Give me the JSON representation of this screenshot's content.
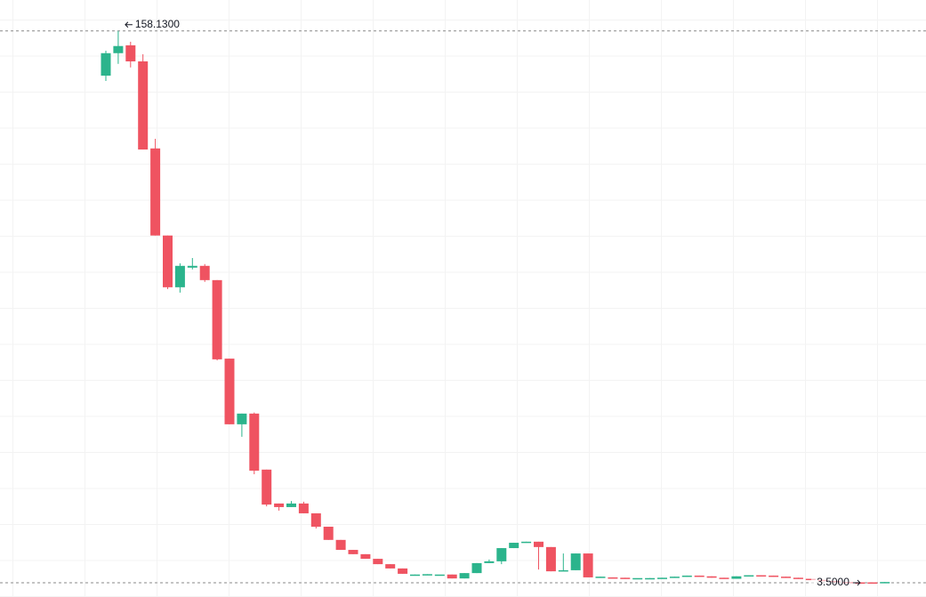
{
  "chart_data": {
    "type": "candlestick",
    "up_color": "#2bb48c",
    "down_color": "#ef5361",
    "ylim": [
      -0.5,
      166.8
    ],
    "categories": [
      null,
      null,
      null,
      null,
      null,
      null,
      null,
      null,
      null,
      null,
      null,
      null,
      null,
      null,
      null,
      null,
      null,
      null,
      null,
      null,
      null,
      null,
      null,
      null,
      null,
      null,
      null,
      null,
      null,
      null,
      null,
      null,
      null,
      null,
      null,
      null,
      null,
      null,
      null,
      null,
      null,
      null,
      null,
      null,
      null,
      null,
      null,
      null,
      null,
      null,
      null,
      null,
      null,
      null,
      null,
      null,
      null,
      null,
      null,
      null,
      null,
      null,
      null,
      null
    ],
    "open": [
      145.6,
      151.9,
      154.1,
      149.6,
      125.2,
      100.8,
      86.3,
      91.8,
      92.3,
      88.3,
      66.3,
      47.9,
      50.9,
      35.2,
      25.7,
      24.7,
      25.7,
      22.95,
      19.2,
      15.5,
      12.7,
      11.5,
      10.2,
      8.7,
      7.5,
      5.7,
      5.8,
      5.8,
      5.8,
      4.7,
      6.2,
      9.0,
      9.5,
      13.2,
      14.7,
      15.0,
      13.5,
      6.7,
      7.0,
      11.7,
      5.0,
      5.0,
      4.9,
      4.8,
      4.7,
      4.8,
      4.9,
      5.2,
      5.5,
      5.3,
      4.9,
      4.6,
      5.3,
      5.6,
      5.5,
      5.2,
      4.9,
      4.6,
      4.3,
      4.0,
      3.7,
      3.6,
      3.6,
      3.55
    ],
    "high": [
      152.6,
      158.13,
      155.1,
      151.6,
      127.9,
      100.8,
      93.0,
      94.5,
      92.8,
      88.3,
      66.3,
      50.9,
      51.2,
      35.2,
      25.7,
      26.4,
      26.2,
      22.95,
      19.2,
      15.5,
      12.7,
      11.5,
      10.2,
      8.7,
      7.5,
      5.8,
      5.9,
      5.8,
      5.8,
      6.2,
      9.0,
      10.0,
      13.2,
      14.7,
      15.0,
      15.0,
      13.5,
      11.7,
      11.7,
      11.7,
      5.2,
      5.0,
      4.9,
      4.8,
      4.8,
      4.9,
      5.2,
      5.5,
      5.5,
      5.3,
      4.9,
      5.3,
      5.6,
      5.6,
      5.5,
      5.2,
      4.9,
      4.6,
      4.3,
      4.0,
      3.7,
      3.6,
      3.6,
      3.7
    ],
    "low": [
      144.1,
      148.9,
      147.9,
      124.9,
      100.8,
      85.8,
      84.8,
      91.3,
      87.8,
      65.8,
      47.9,
      44.4,
      33.9,
      24.9,
      23.7,
      24.7,
      22.95,
      18.7,
      15.5,
      12.7,
      11.5,
      10.2,
      8.7,
      7.5,
      6.0,
      5.7,
      5.8,
      5.8,
      4.7,
      4.7,
      6.2,
      9.0,
      8.7,
      13.2,
      14.7,
      7.2,
      6.7,
      6.7,
      7.0,
      5.0,
      5.0,
      4.7,
      4.8,
      4.8,
      4.7,
      4.8,
      4.9,
      5.2,
      5.3,
      4.9,
      4.6,
      4.6,
      5.3,
      5.5,
      5.2,
      4.9,
      4.6,
      4.3,
      4.0,
      3.7,
      3.6,
      3.5,
      3.55,
      3.55
    ],
    "close": [
      151.9,
      153.9,
      149.6,
      124.9,
      100.8,
      86.3,
      92.3,
      92.3,
      88.3,
      66.1,
      47.9,
      50.9,
      34.9,
      25.4,
      24.7,
      25.7,
      22.95,
      19.2,
      15.5,
      12.7,
      11.5,
      10.2,
      8.7,
      7.5,
      6.0,
      5.8,
      5.9,
      5.8,
      4.7,
      6.2,
      9.0,
      9.5,
      13.2,
      14.7,
      15.0,
      13.5,
      6.7,
      7.0,
      11.7,
      5.0,
      5.2,
      4.7,
      4.8,
      4.8,
      4.8,
      4.9,
      5.2,
      5.5,
      5.3,
      4.9,
      4.6,
      5.3,
      5.6,
      5.5,
      5.2,
      4.9,
      4.6,
      4.3,
      4.0,
      3.7,
      3.6,
      3.5,
      3.55,
      3.7
    ],
    "annotations": [
      {
        "text": "158.1300",
        "value": 158.13
      },
      {
        "text": "3.5000",
        "value": 3.5
      }
    ]
  }
}
